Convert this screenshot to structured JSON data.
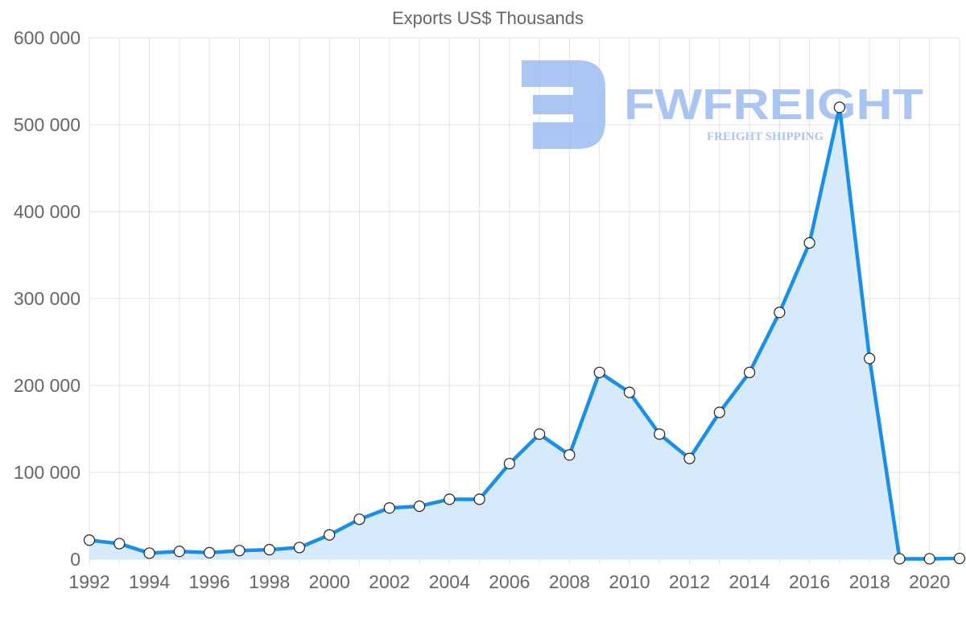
{
  "chart_data": {
    "type": "area",
    "title": "Exports US$ Thousands",
    "xlabel": "",
    "ylabel": "",
    "x": [
      1992,
      1993,
      1994,
      1995,
      1996,
      1997,
      1998,
      1999,
      2000,
      2001,
      2002,
      2003,
      2004,
      2005,
      2006,
      2007,
      2008,
      2009,
      2010,
      2011,
      2012,
      2013,
      2014,
      2015,
      2016,
      2017,
      2018,
      2019,
      2020,
      2021
    ],
    "series": [
      {
        "name": "Exports US$ Thousands",
        "values": [
          22000,
          18000,
          7000,
          9000,
          7500,
          10000,
          11000,
          13500,
          28000,
          46000,
          59000,
          61000,
          69000,
          69000,
          110000,
          144000,
          120000,
          215000,
          192000,
          144000,
          116000,
          169000,
          215000,
          284000,
          364000,
          520000,
          231000,
          500,
          500,
          1000
        ]
      }
    ],
    "ylim": [
      0,
      600000
    ],
    "xlim": [
      1992,
      2021
    ],
    "y_ticks": [
      0,
      100000,
      200000,
      300000,
      400000,
      500000,
      600000
    ],
    "y_tick_labels": [
      "0",
      "100 000",
      "200 000",
      "300 000",
      "400 000",
      "500 000",
      "600 000"
    ],
    "x_tick_labels": [
      "1992",
      "1994",
      "1996",
      "1998",
      "2000",
      "2002",
      "2004",
      "2006",
      "2008",
      "2010",
      "2012",
      "2014",
      "2016",
      "2018",
      "2020"
    ],
    "grid": true,
    "legend": "none",
    "colors": {
      "line": "#1a8fe8",
      "fill": "#d6eafb",
      "grid": "#e2e2e2",
      "axis_text": "#666666",
      "title_text": "#666666",
      "point_fill": "#ffffff",
      "point_stroke": "#222222",
      "watermark": "#9cbcf0"
    }
  },
  "watermark": {
    "brand": "FWFREIGHT",
    "tagline": "FREIGHT SHIPPING"
  }
}
